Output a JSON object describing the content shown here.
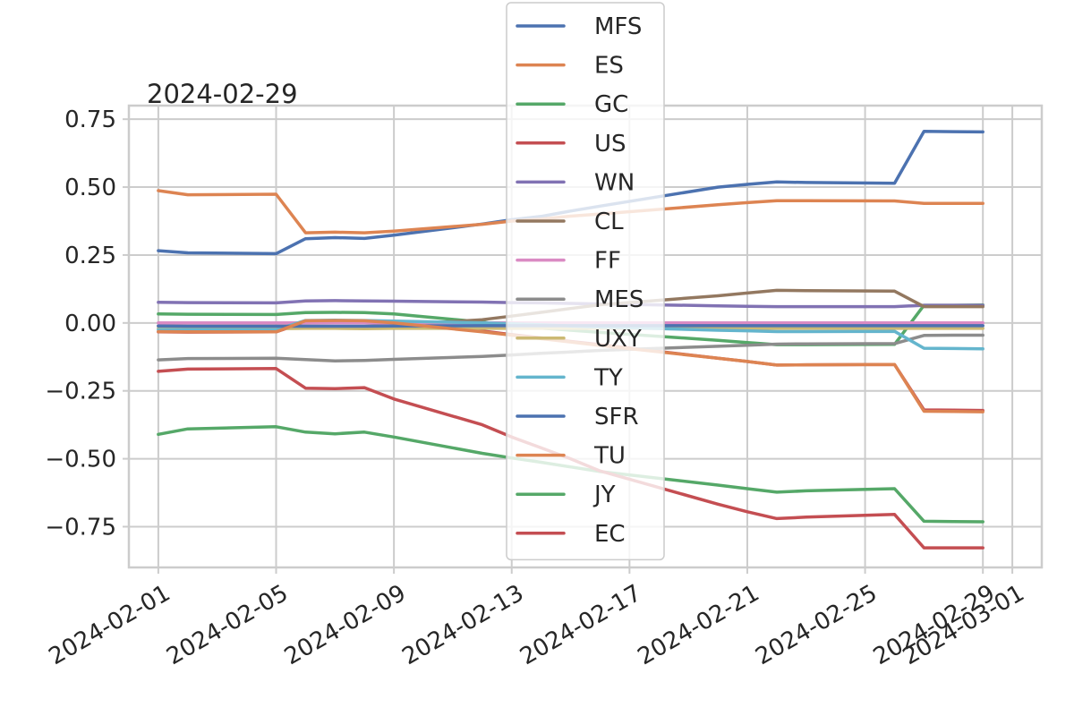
{
  "chart_data": {
    "type": "line",
    "title": "2024-02-29",
    "xlabel": "",
    "ylabel": "",
    "x": [
      "2024-02-01",
      "2024-02-02",
      "2024-02-05",
      "2024-02-06",
      "2024-02-07",
      "2024-02-08",
      "2024-02-09",
      "2024-02-12",
      "2024-02-13",
      "2024-02-14",
      "2024-02-15",
      "2024-02-16",
      "2024-02-20",
      "2024-02-21",
      "2024-02-22",
      "2024-02-23",
      "2024-02-26",
      "2024-02-27",
      "2024-02-28",
      "2024-02-29"
    ],
    "xlim": [
      "2024-01-31",
      "2024-03-02"
    ],
    "ylim": [
      -0.9,
      0.8
    ],
    "x_ticks": [
      "2024-02-01",
      "2024-02-05",
      "2024-02-09",
      "2024-02-13",
      "2024-02-17",
      "2024-02-21",
      "2024-02-25",
      "2024-02-29",
      "2024-03-01"
    ],
    "y_ticks": [
      0.75,
      0.5,
      0.25,
      0.0,
      -0.25,
      -0.5,
      -0.75
    ],
    "y_tick_labels": [
      "0.75",
      "0.50",
      "0.25",
      "0.00",
      "−0.25",
      "−0.50",
      "−0.75"
    ],
    "grid": true,
    "legend": "top-center",
    "series": [
      {
        "name": "MFS",
        "color": "#4c72b0",
        "values": [
          0.266,
          0.258,
          0.255,
          0.31,
          0.314,
          0.311,
          0.323,
          0.364,
          0.38,
          0.392,
          0.412,
          0.43,
          0.5,
          0.51,
          0.519,
          0.517,
          0.514,
          0.705,
          0.704,
          0.703
        ]
      },
      {
        "name": "ES",
        "color": "#dd8452",
        "values": [
          0.487,
          0.472,
          0.474,
          0.332,
          0.334,
          0.332,
          0.338,
          0.363,
          0.375,
          0.382,
          0.393,
          0.401,
          0.435,
          0.443,
          0.45,
          0.45,
          0.449,
          0.44,
          0.44,
          0.44
        ]
      },
      {
        "name": "GC",
        "color": "#55a868",
        "values": [
          0.033,
          0.032,
          0.031,
          0.038,
          0.039,
          0.038,
          0.033,
          0.003,
          -0.01,
          -0.019,
          -0.027,
          -0.035,
          -0.064,
          -0.072,
          -0.08,
          -0.08,
          -0.079,
          0.065,
          0.065,
          0.066
        ]
      },
      {
        "name": "US",
        "color": "#c44e52",
        "values": [
          -0.033,
          -0.034,
          -0.033,
          0.004,
          0.005,
          0.004,
          -0.001,
          -0.03,
          -0.043,
          -0.055,
          -0.068,
          -0.08,
          -0.13,
          -0.142,
          -0.155,
          -0.154,
          -0.153,
          -0.32,
          -0.321,
          -0.322
        ]
      },
      {
        "name": "WN",
        "color": "#8172b3",
        "values": [
          0.076,
          0.075,
          0.074,
          0.081,
          0.082,
          0.081,
          0.08,
          0.077,
          0.075,
          0.074,
          0.072,
          0.07,
          0.063,
          0.061,
          0.06,
          0.06,
          0.06,
          0.065,
          0.065,
          0.065
        ]
      },
      {
        "name": "CL",
        "color": "#937860",
        "values": [
          -0.011,
          -0.012,
          -0.012,
          -0.012,
          -0.013,
          -0.013,
          -0.008,
          0.012,
          0.025,
          0.039,
          0.053,
          0.067,
          0.1,
          0.11,
          0.12,
          0.119,
          0.117,
          0.06,
          0.06,
          0.06
        ]
      },
      {
        "name": "FF",
        "color": "#da8bc3",
        "values": [
          0.0,
          0.0,
          0.0,
          0.0,
          0.0,
          0.0,
          0.0,
          0.0,
          0.0,
          0.0,
          0.0,
          0.0,
          0.0,
          0.0,
          0.0,
          0.0,
          0.0,
          0.0,
          0.0,
          0.0
        ]
      },
      {
        "name": "MES",
        "color": "#8c8c8c",
        "values": [
          -0.136,
          -0.131,
          -0.13,
          -0.135,
          -0.14,
          -0.138,
          -0.134,
          -0.123,
          -0.118,
          -0.112,
          -0.107,
          -0.101,
          -0.086,
          -0.082,
          -0.078,
          -0.077,
          -0.076,
          -0.046,
          -0.045,
          -0.045
        ]
      },
      {
        "name": "UXY",
        "color": "#ccb974",
        "values": [
          -0.02,
          -0.02,
          -0.021,
          -0.02,
          -0.02,
          -0.021,
          -0.02,
          -0.02,
          -0.02,
          -0.02,
          -0.02,
          -0.02,
          -0.02,
          -0.02,
          -0.02,
          -0.02,
          -0.02,
          -0.02,
          -0.02,
          -0.02
        ]
      },
      {
        "name": "TY",
        "color": "#64b5cd",
        "values": [
          -0.025,
          -0.025,
          -0.025,
          0.009,
          0.01,
          0.009,
          0.007,
          0.0,
          -0.003,
          -0.007,
          -0.011,
          -0.015,
          -0.027,
          -0.029,
          -0.032,
          -0.032,
          -0.031,
          -0.093,
          -0.094,
          -0.095
        ]
      },
      {
        "name": "SFR",
        "color": "#4c72b0",
        "values": [
          -0.011,
          -0.012,
          -0.012,
          -0.012,
          -0.012,
          -0.012,
          -0.011,
          -0.01,
          -0.01,
          -0.01,
          -0.01,
          -0.01,
          -0.01,
          -0.01,
          -0.01,
          -0.01,
          -0.01,
          -0.01,
          -0.01,
          -0.01
        ]
      },
      {
        "name": "TU",
        "color": "#dd8452",
        "values": [
          -0.032,
          -0.033,
          -0.033,
          0.008,
          0.009,
          0.008,
          0.0,
          -0.033,
          -0.045,
          -0.058,
          -0.07,
          -0.083,
          -0.13,
          -0.142,
          -0.155,
          -0.154,
          -0.153,
          -0.325,
          -0.326,
          -0.327
        ]
      },
      {
        "name": "JY",
        "color": "#55a868",
        "values": [
          -0.41,
          -0.39,
          -0.382,
          -0.402,
          -0.408,
          -0.402,
          -0.42,
          -0.48,
          -0.497,
          -0.513,
          -0.53,
          -0.547,
          -0.597,
          -0.61,
          -0.623,
          -0.618,
          -0.61,
          -0.73,
          -0.731,
          -0.732
        ]
      },
      {
        "name": "EC",
        "color": "#c44e52",
        "values": [
          -0.178,
          -0.17,
          -0.168,
          -0.24,
          -0.242,
          -0.238,
          -0.28,
          -0.375,
          -0.42,
          -0.46,
          -0.5,
          -0.545,
          -0.667,
          -0.695,
          -0.72,
          -0.715,
          -0.705,
          -0.828,
          -0.828,
          -0.828
        ]
      }
    ]
  }
}
